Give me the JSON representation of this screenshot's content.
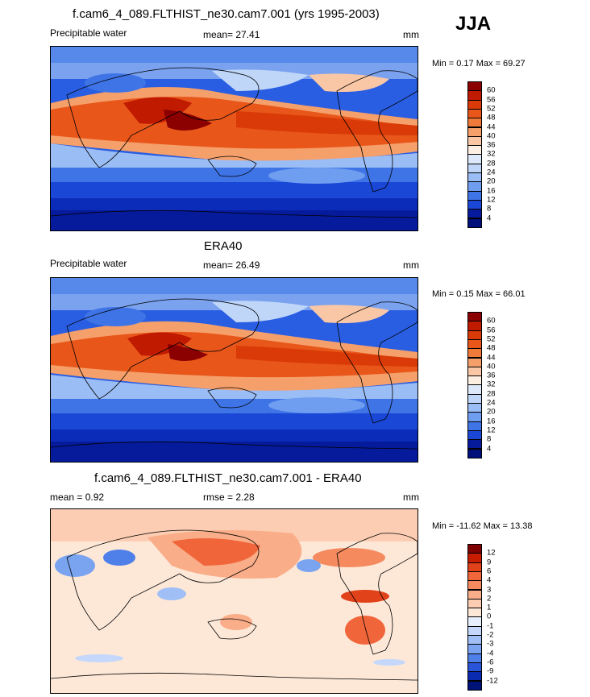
{
  "season": "JJA",
  "panels": [
    {
      "title": "f.cam6_4_089.FLTHIST_ne30.cam7.001 (yrs 1995-2003)",
      "left_label": "Precipitable water",
      "center_label": "mean=  27.41",
      "right_label": "mm",
      "minmax": "Min =   0.17 Max =  69.27",
      "colorbar": {
        "labels": [
          "60",
          "56",
          "52",
          "48",
          "44",
          "40",
          "36",
          "32",
          "28",
          "24",
          "20",
          "16",
          "12",
          "8",
          "4"
        ],
        "colors": [
          "#8b0000",
          "#c01a00",
          "#d93a07",
          "#e8561a",
          "#f07a3a",
          "#f59f6a",
          "#fac7a6",
          "#fdeee2",
          "#dde9fb",
          "#bfd6f9",
          "#9bbdf5",
          "#6f9ef0",
          "#3f74e6",
          "#1b47d6",
          "#061b9c",
          "#00107a"
        ]
      }
    },
    {
      "title": "ERA40",
      "left_label": "Precipitable water",
      "center_label": "mean=  26.49",
      "right_label": "mm",
      "minmax": "Min =   0.15 Max =  66.01",
      "colorbar": {
        "labels": [
          "60",
          "56",
          "52",
          "48",
          "44",
          "40",
          "36",
          "32",
          "28",
          "24",
          "20",
          "16",
          "12",
          "8",
          "4"
        ],
        "colors": [
          "#8b0000",
          "#c01a00",
          "#d93a07",
          "#e8561a",
          "#f07a3a",
          "#f59f6a",
          "#fac7a6",
          "#fdeee2",
          "#dde9fb",
          "#bfd6f9",
          "#9bbdf5",
          "#6f9ef0",
          "#3f74e6",
          "#1b47d6",
          "#061b9c",
          "#00107a"
        ]
      }
    },
    {
      "title": "f.cam6_4_089.FLTHIST_ne30.cam7.001 - ERA40",
      "left_label": "mean =   0.92",
      "center_label": "rmse =   2.28",
      "right_label": "mm",
      "minmax": "Min = -11.62 Max =  13.38",
      "colorbar": {
        "labels": [
          "12",
          "9",
          "6",
          "4",
          "3",
          "2",
          "1",
          "0",
          "-1",
          "-2",
          "-3",
          "-4",
          "-6",
          "-9",
          "-12"
        ],
        "colors": [
          "#7f0000",
          "#c81c00",
          "#e2421a",
          "#f0663a",
          "#f58a5e",
          "#f9ad88",
          "#fccdb2",
          "#fde8d8",
          "#e7efff",
          "#c5d8fb",
          "#9fbff6",
          "#7aa4f0",
          "#4f7fe8",
          "#2a55d8",
          "#0a2ab0",
          "#001378"
        ]
      }
    }
  ],
  "chart_data": [
    {
      "type": "heatmap",
      "title": "f.cam6_4_089.FLTHIST_ne30.cam7.001 (yrs 1995-2003)",
      "variable": "Precipitable water",
      "units": "mm",
      "season": "JJA",
      "mean": 27.41,
      "min": 0.17,
      "max": 69.27,
      "contour_levels": [
        4,
        8,
        12,
        16,
        20,
        24,
        28,
        32,
        36,
        40,
        44,
        48,
        52,
        56,
        60
      ],
      "approx_zonal_profile": {
        "lat": [
          -85,
          -70,
          -55,
          -40,
          -25,
          -10,
          0,
          10,
          20,
          30,
          45,
          60,
          75,
          85
        ],
        "value": [
          2,
          5,
          9,
          15,
          24,
          35,
          46,
          50,
          44,
          32,
          22,
          16,
          10,
          8
        ]
      }
    },
    {
      "type": "heatmap",
      "title": "ERA40",
      "variable": "Precipitable water",
      "units": "mm",
      "season": "JJA",
      "mean": 26.49,
      "min": 0.15,
      "max": 66.01,
      "contour_levels": [
        4,
        8,
        12,
        16,
        20,
        24,
        28,
        32,
        36,
        40,
        44,
        48,
        52,
        56,
        60
      ],
      "approx_zonal_profile": {
        "lat": [
          -85,
          -70,
          -55,
          -40,
          -25,
          -10,
          0,
          10,
          20,
          30,
          45,
          60,
          75,
          85
        ],
        "value": [
          2,
          5,
          9,
          14,
          22,
          33,
          44,
          48,
          42,
          31,
          21,
          15,
          10,
          8
        ]
      }
    },
    {
      "type": "heatmap",
      "title": "f.cam6_4_089.FLTHIST_ne30.cam7.001 - ERA40",
      "units": "mm",
      "season": "JJA",
      "mean": 0.92,
      "rmse": 2.28,
      "min": -11.62,
      "max": 13.38,
      "contour_levels": [
        -12,
        -9,
        -6,
        -4,
        -3,
        -2,
        -1,
        0,
        1,
        2,
        3,
        4,
        6,
        9,
        12
      ]
    }
  ]
}
